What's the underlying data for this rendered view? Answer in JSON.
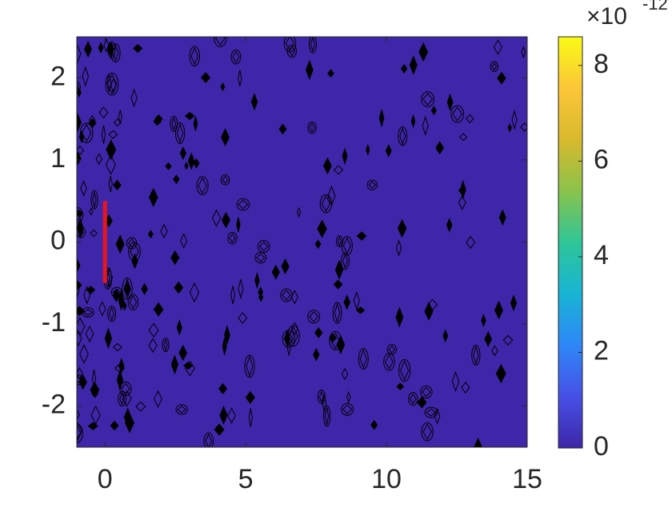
{
  "chart_data": {
    "type": "contour",
    "xlim": [
      -1,
      15
    ],
    "ylim": [
      -2.5,
      2.5
    ],
    "xticks": [
      0,
      5,
      10,
      15
    ],
    "yticks": [
      -2,
      -1,
      0,
      1,
      2
    ],
    "fill_color": "#3e26a8",
    "contour_color": "#000000",
    "series": [
      {
        "color": "#e8141e",
        "x": [
          0,
          0
        ],
        "y": [
          -0.5,
          0.5
        ]
      }
    ],
    "colorbar": {
      "clim": [
        0,
        8.6
      ],
      "ticks": [
        0,
        2,
        4,
        6,
        8
      ],
      "multiplier": "×10",
      "exponent": -12,
      "colormap": [
        "#3e26a8",
        "#4750e6",
        "#2e87f7",
        "#18b4d4",
        "#2ec697",
        "#8ac34b",
        "#d8b92d",
        "#fcc638",
        "#f9fb15"
      ]
    }
  }
}
